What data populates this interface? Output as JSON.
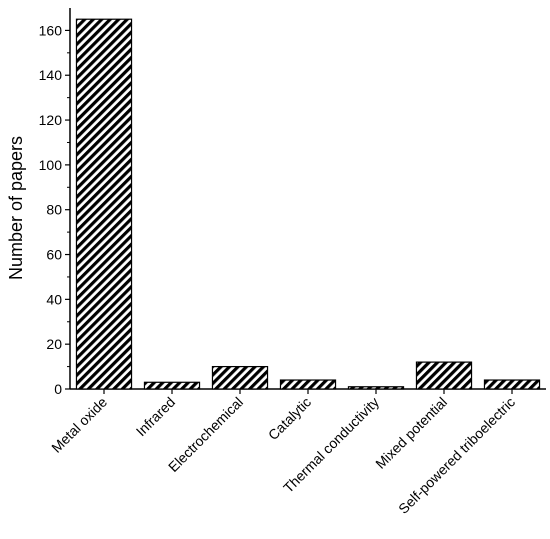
{
  "chart_data": {
    "type": "bar",
    "categories": [
      "Metal oxide",
      "Infrared",
      "Electrochemical",
      "Catalytic",
      "Thermal conductivity",
      "Mixed potential",
      "Self-powered triboelectric"
    ],
    "values": [
      165,
      3,
      10,
      4,
      1,
      12,
      4
    ],
    "xlabel": "",
    "ylabel": "Number of papers",
    "ylim": [
      0,
      170
    ],
    "yticks": [
      0,
      20,
      40,
      60,
      80,
      100,
      120,
      140,
      160
    ],
    "grid": false,
    "bar_fill": "hatched diagonal",
    "colors": {
      "bar_stroke": "#000000",
      "bar_fill_bg": "#ffffff",
      "hatch": "#000000"
    }
  }
}
